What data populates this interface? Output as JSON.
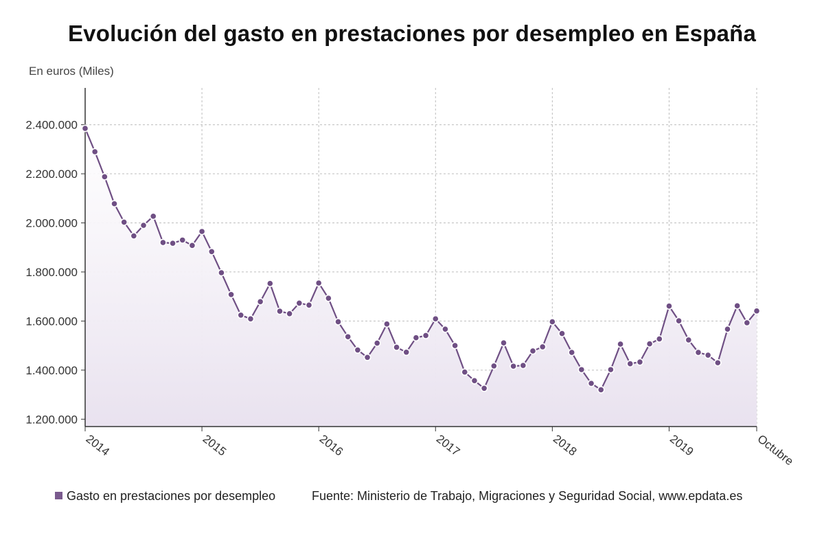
{
  "title": "Evolución del gasto en prestaciones por desempleo en España",
  "unit_label": "En euros (Miles)",
  "legend_label": "Gasto en prestaciones por desempleo",
  "source": "Fuente: Ministerio de Trabajo, Migraciones y Seguridad Social, www.epdata.es",
  "colors": {
    "line": "#6f4f84",
    "fill_top": "#e9e2ef",
    "grid": "#bdbdbd",
    "axis": "#333333"
  },
  "chart_data": {
    "type": "area",
    "title": "Evolución del gasto en prestaciones por desempleo en España",
    "ylabel": "En euros (Miles)",
    "xlabel": "",
    "ylim": [
      1170000,
      2550000
    ],
    "yticks": [
      1200000,
      1400000,
      1600000,
      1800000,
      2000000,
      2200000,
      2400000
    ],
    "ytick_labels": [
      "1.200.000",
      "1.400.000",
      "1.600.000",
      "1.800.000",
      "2.000.000",
      "2.200.000",
      "2.400.000"
    ],
    "xticks": [
      {
        "label": "2014",
        "index": 0
      },
      {
        "label": "2015",
        "index": 12
      },
      {
        "label": "2016",
        "index": 24
      },
      {
        "label": "2017",
        "index": 36
      },
      {
        "label": "2018",
        "index": 48
      },
      {
        "label": "2019",
        "index": 60
      },
      {
        "label": "Octubre",
        "index": 69
      }
    ],
    "grid": true,
    "legend_position": "bottom-left",
    "series": [
      {
        "name": "Gasto en prestaciones por desempleo",
        "x": [
          "2014-01",
          "2014-02",
          "2014-03",
          "2014-04",
          "2014-05",
          "2014-06",
          "2014-07",
          "2014-08",
          "2014-09",
          "2014-10",
          "2014-11",
          "2014-12",
          "2015-01",
          "2015-02",
          "2015-03",
          "2015-04",
          "2015-05",
          "2015-06",
          "2015-07",
          "2015-08",
          "2015-09",
          "2015-10",
          "2015-11",
          "2015-12",
          "2016-01",
          "2016-02",
          "2016-03",
          "2016-04",
          "2016-05",
          "2016-06",
          "2016-07",
          "2016-08",
          "2016-09",
          "2016-10",
          "2016-11",
          "2016-12",
          "2017-01",
          "2017-02",
          "2017-03",
          "2017-04",
          "2017-05",
          "2017-06",
          "2017-07",
          "2017-08",
          "2017-09",
          "2017-10",
          "2017-11",
          "2017-12",
          "2018-01",
          "2018-02",
          "2018-03",
          "2018-04",
          "2018-05",
          "2018-06",
          "2018-07",
          "2018-08",
          "2018-09",
          "2018-10",
          "2018-11",
          "2018-12",
          "2019-01",
          "2019-02",
          "2019-03",
          "2019-04",
          "2019-05",
          "2019-06",
          "2019-07",
          "2019-08",
          "2019-09",
          "2019-10"
        ],
        "values": [
          2385000,
          2290000,
          2188000,
          2078000,
          2003000,
          1947000,
          1990000,
          2027000,
          1920000,
          1917000,
          1930000,
          1908000,
          1965000,
          1883000,
          1797000,
          1708000,
          1624000,
          1609000,
          1679000,
          1753000,
          1640000,
          1630000,
          1673000,
          1665000,
          1755000,
          1693000,
          1597000,
          1536000,
          1482000,
          1452000,
          1510000,
          1588000,
          1493000,
          1473000,
          1532000,
          1541000,
          1609000,
          1567000,
          1500000,
          1392000,
          1357000,
          1326000,
          1417000,
          1511000,
          1416000,
          1419000,
          1478000,
          1495000,
          1597000,
          1549000,
          1472000,
          1402000,
          1346000,
          1320000,
          1402000,
          1506000,
          1426000,
          1433000,
          1507000,
          1527000,
          1661000,
          1601000,
          1523000,
          1472000,
          1461000,
          1430000,
          1567000,
          1662000,
          1593000,
          1641000
        ]
      }
    ]
  }
}
